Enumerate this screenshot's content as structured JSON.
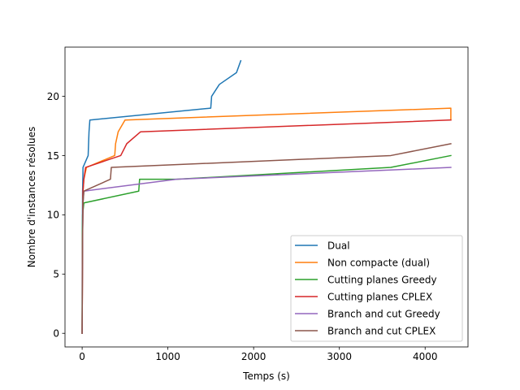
{
  "chart_data": {
    "type": "line",
    "xlabel": "Temps (s)",
    "ylabel": "Nombre d'instances résolues",
    "xlim": [
      -200,
      4500
    ],
    "ylim": [
      -1.15,
      24.15
    ],
    "x_ticks": [
      0,
      1000,
      2000,
      3000,
      4000
    ],
    "y_ticks": [
      0,
      5,
      10,
      15,
      20
    ],
    "grid": false,
    "legend_position": "lower-right",
    "series": [
      {
        "name": "Dual",
        "color": "#1f77b4",
        "points": [
          [
            0,
            0
          ],
          [
            2,
            8
          ],
          [
            5,
            12
          ],
          [
            8,
            13
          ],
          [
            10,
            14
          ],
          [
            70,
            15
          ],
          [
            75,
            16
          ],
          [
            80,
            17
          ],
          [
            90,
            18
          ],
          [
            1500,
            19
          ],
          [
            1510,
            20
          ],
          [
            1600,
            21
          ],
          [
            1800,
            22
          ],
          [
            1850,
            23
          ]
        ]
      },
      {
        "name": "Non compacte (dual)",
        "color": "#ff7f0e",
        "points": [
          [
            0,
            0
          ],
          [
            5,
            8
          ],
          [
            10,
            12
          ],
          [
            20,
            13
          ],
          [
            50,
            14
          ],
          [
            380,
            15
          ],
          [
            390,
            16
          ],
          [
            420,
            17
          ],
          [
            500,
            18
          ],
          [
            4300,
            19
          ],
          [
            4300,
            18
          ]
        ]
      },
      {
        "name": "Cutting planes Greedy",
        "color": "#2ca02c",
        "points": [
          [
            0,
            0
          ],
          [
            2,
            8
          ],
          [
            5,
            10
          ],
          [
            20,
            11
          ],
          [
            660,
            12
          ],
          [
            670,
            13
          ],
          [
            1100,
            13
          ],
          [
            3600,
            14
          ],
          [
            4300,
            15
          ]
        ]
      },
      {
        "name": "Cutting planes CPLEX",
        "color": "#d62728",
        "points": [
          [
            0,
            0
          ],
          [
            5,
            8
          ],
          [
            10,
            12
          ],
          [
            20,
            13
          ],
          [
            40,
            14
          ],
          [
            450,
            15
          ],
          [
            520,
            16
          ],
          [
            680,
            17
          ],
          [
            4300,
            18
          ]
        ]
      },
      {
        "name": "Branch and cut Greedy",
        "color": "#9467bd",
        "points": [
          [
            0,
            0
          ],
          [
            5,
            8
          ],
          [
            10,
            11
          ],
          [
            20,
            12
          ],
          [
            1100,
            13
          ],
          [
            4300,
            14
          ]
        ]
      },
      {
        "name": "Branch and cut CPLEX",
        "color": "#8c564b",
        "points": [
          [
            0,
            0
          ],
          [
            5,
            8
          ],
          [
            10,
            11
          ],
          [
            20,
            12
          ],
          [
            330,
            13
          ],
          [
            340,
            14
          ],
          [
            3600,
            15
          ],
          [
            4300,
            16
          ]
        ]
      }
    ]
  }
}
